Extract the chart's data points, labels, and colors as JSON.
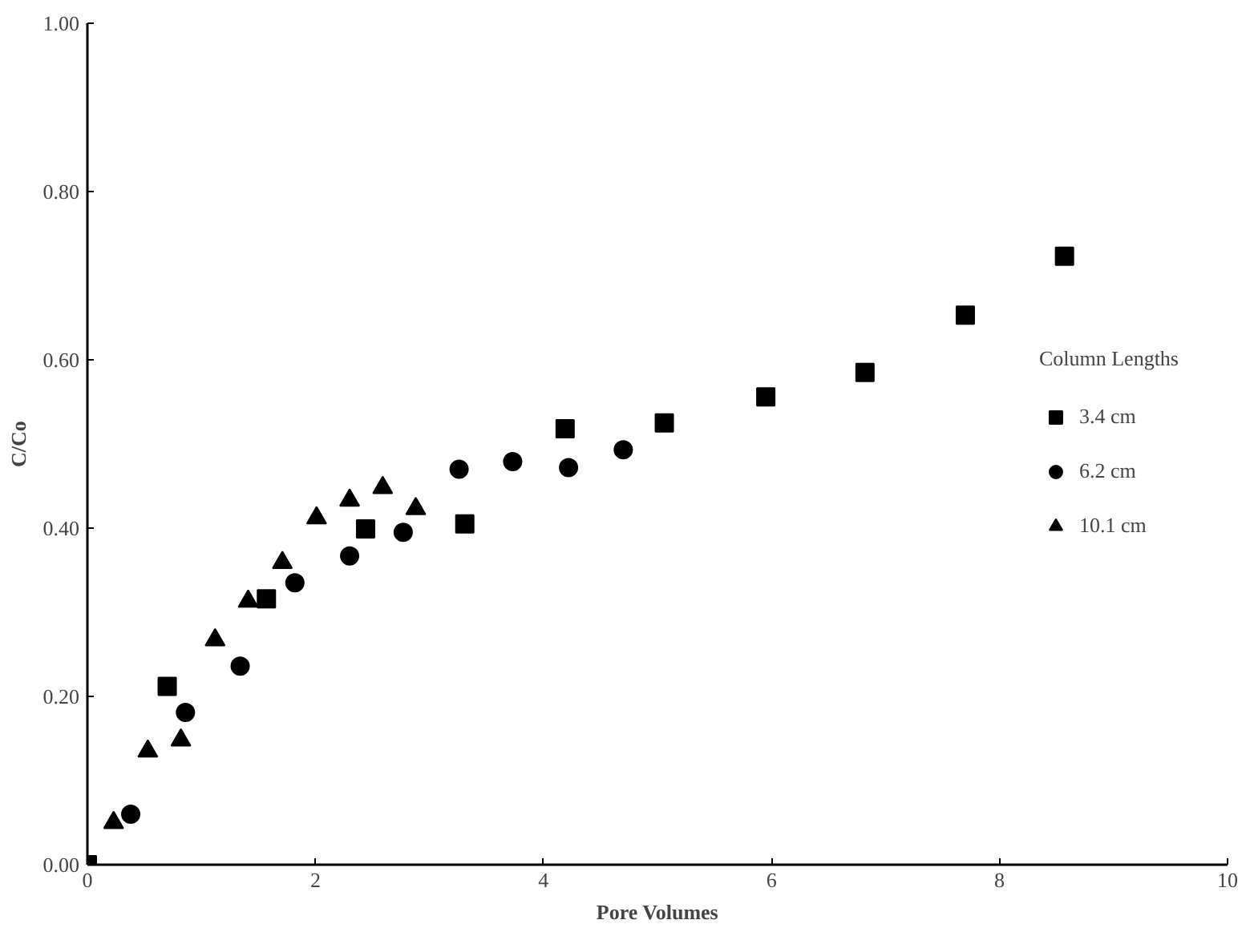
{
  "chart_data": {
    "type": "scatter",
    "xlabel": "Pore Volumes",
    "ylabel": "C/Co",
    "legend_title": "Column Lengths",
    "legend": "right",
    "grid": false,
    "xlim": [
      0,
      10
    ],
    "ylim": [
      0,
      1
    ],
    "xticks": [
      0,
      2,
      4,
      6,
      8,
      10
    ],
    "yticks": [
      {
        "value": 0,
        "label": "0.00"
      },
      {
        "value": 0.2,
        "label": "0.20"
      },
      {
        "value": 0.4,
        "label": "0.40"
      },
      {
        "value": 0.6,
        "label": "0.60"
      },
      {
        "value": 0.8,
        "label": "0.80"
      },
      {
        "value": 1,
        "label": "1.00"
      }
    ],
    "series": [
      {
        "name": "3.4 cm",
        "color": "#000000",
        "marker": "square",
        "x": [
          0,
          0.7,
          1.57,
          2.44,
          3.31,
          4.19,
          5.06,
          5.95,
          6.82,
          7.7,
          8.57
        ],
        "values": [
          0,
          0.212,
          0.316,
          0.399,
          0.405,
          0.518,
          0.525,
          0.556,
          0.585,
          0.653,
          0.723
        ]
      },
      {
        "name": "6.2 cm",
        "color": "#000000",
        "marker": "circle",
        "x": [
          0.38,
          0.86,
          1.34,
          1.82,
          2.3,
          2.77,
          3.26,
          3.73,
          4.22,
          4.7
        ],
        "values": [
          0.06,
          0.181,
          0.236,
          0.335,
          0.367,
          0.395,
          0.47,
          0.479,
          0.472,
          0.493
        ]
      },
      {
        "name": "10.1 cm",
        "color": "#000000",
        "marker": "triangle",
        "x": [
          0.23,
          0.53,
          0.82,
          1.12,
          1.41,
          1.71,
          2.01,
          2.3,
          2.59,
          2.88
        ],
        "values": [
          0.05,
          0.135,
          0.148,
          0.267,
          0.313,
          0.359,
          0.412,
          0.433,
          0.448,
          0.423
        ]
      }
    ]
  }
}
